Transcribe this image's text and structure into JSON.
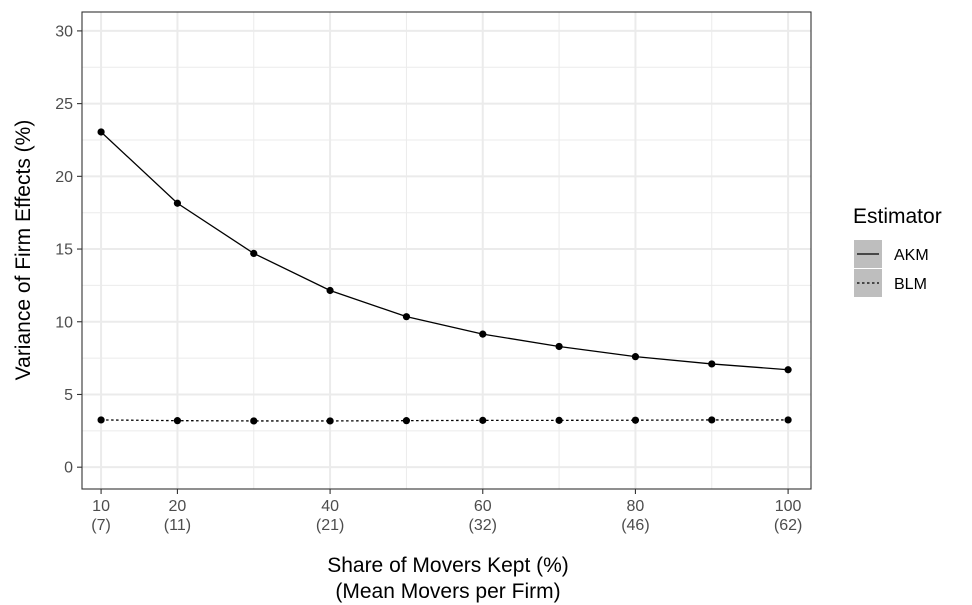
{
  "chart_data": {
    "type": "line",
    "title": "",
    "xlabel_line1": "Share of Movers Kept (%)",
    "xlabel_line2": "(Mean Movers per Firm)",
    "ylabel": "Variance of Firm Effects (%)",
    "xlim": [
      7.5,
      103
    ],
    "ylim": [
      -1.5,
      31.3
    ],
    "x_ticks": [
      {
        "value": 10,
        "label": "10",
        "sublabel": "(7)"
      },
      {
        "value": 20,
        "label": "20",
        "sublabel": "(11)"
      },
      {
        "value": 40,
        "label": "40",
        "sublabel": "(21)"
      },
      {
        "value": 60,
        "label": "60",
        "sublabel": "(32)"
      },
      {
        "value": 80,
        "label": "80",
        "sublabel": "(46)"
      },
      {
        "value": 100,
        "label": "100",
        "sublabel": "(62)"
      }
    ],
    "x_minor_grid": [
      30,
      50,
      70,
      90
    ],
    "y_ticks": [
      0,
      5,
      10,
      15,
      20,
      25,
      30
    ],
    "y_minor_grid": [
      2.5,
      7.5,
      12.5,
      17.5,
      22.5,
      27.5
    ],
    "grid": true,
    "legend": {
      "title": "Estimator",
      "placement": "right"
    },
    "x": [
      10,
      20,
      30,
      40,
      50,
      60,
      70,
      80,
      90,
      100
    ],
    "series": [
      {
        "name": "AKM",
        "linetype": "solid",
        "values": [
          23.05,
          18.15,
          14.7,
          12.15,
          10.35,
          9.15,
          8.3,
          7.6,
          7.1,
          6.7
        ]
      },
      {
        "name": "BLM",
        "linetype": "dotted",
        "values": [
          3.25,
          3.2,
          3.18,
          3.18,
          3.2,
          3.22,
          3.22,
          3.23,
          3.25,
          3.25
        ]
      }
    ],
    "colors": {
      "line": "#000000",
      "grid": "#ebebeb",
      "panel_border": "#333333",
      "legend_key": "#bebebe"
    }
  }
}
